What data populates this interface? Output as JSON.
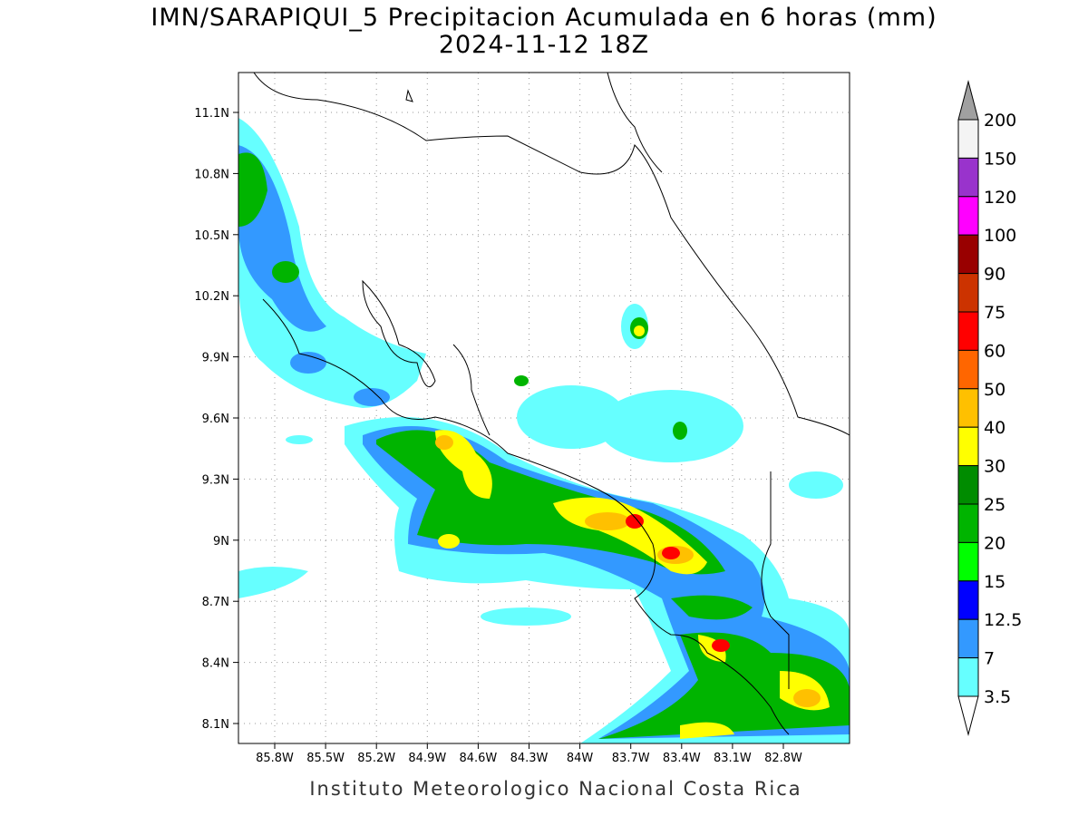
{
  "title": "IMN/SARAPIQUI_5 Precipitacion Acumulada en 6 horas (mm)",
  "subtitle": "2024-11-12 18Z",
  "map": {
    "y_labels": [
      "11.1N",
      "10.8N",
      "10.5N",
      "10.2N",
      "9.9N",
      "9.6N",
      "9.3N",
      "9N",
      "8.7N",
      "8.4N",
      "8.1N"
    ],
    "x_labels": [
      "85.8W",
      "85.5W",
      "85.2W",
      "84.9W",
      "84.6W",
      "84.3W",
      "84W",
      "83.7W",
      "83.4W",
      "83.1W",
      "82.8W"
    ]
  },
  "colorbar": {
    "labels": [
      "200",
      "150",
      "120",
      "100",
      "90",
      "75",
      "60",
      "50",
      "40",
      "30",
      "25",
      "20",
      "15",
      "12.5",
      "7",
      "3.5"
    ],
    "colors": [
      "#f4f4f4",
      "#9933cc",
      "#ff00ff",
      "#990000",
      "#cc3300",
      "#ff0000",
      "#ff6600",
      "#ffc000",
      "#ffff00",
      "#008c00",
      "#00b400",
      "#00ff00",
      "#0000ff",
      "#3399ff",
      "#66ffff"
    ],
    "over_color": "#a0a0a0",
    "under_color": "#ffffff"
  },
  "footer": "Instituto Meteorologico Nacional Costa Rica"
}
